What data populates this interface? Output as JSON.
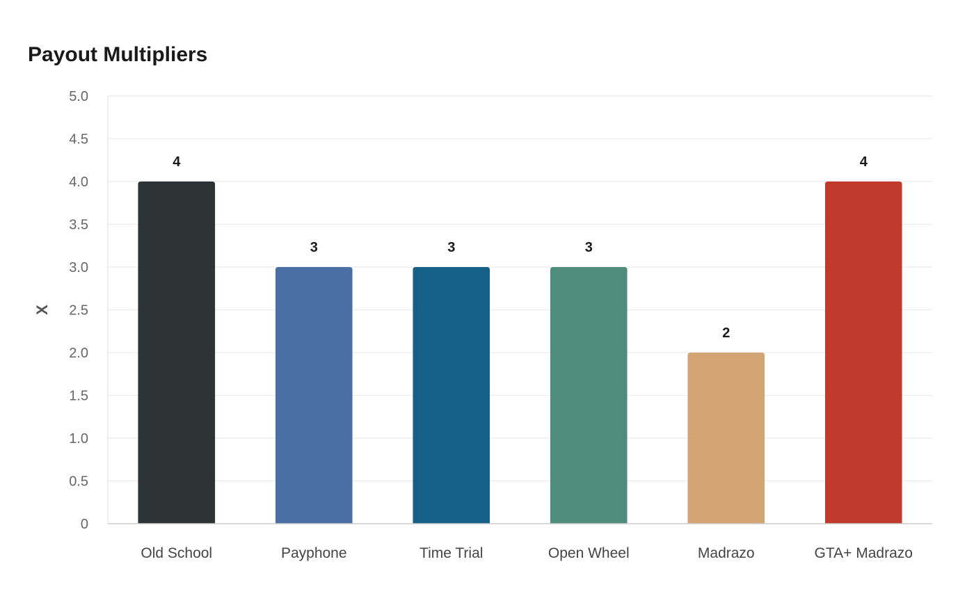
{
  "chart_data": {
    "type": "bar",
    "title": "Payout Multipliers",
    "ylabel": "X",
    "xlabel": "",
    "ylim": [
      0,
      5
    ],
    "yticks": [
      0,
      0.5,
      1,
      1.5,
      2,
      2.5,
      3,
      3.5,
      4,
      4.5,
      5
    ],
    "ytick_labels": [
      "0",
      "0.5",
      "1.0",
      "1.5",
      "2.0",
      "2.5",
      "3.0",
      "3.5",
      "4.0",
      "4.5",
      "5.0"
    ],
    "grid": true,
    "categories": [
      "Old School",
      "Payphone",
      "Time Trial",
      "Open Wheel",
      "Madrazo",
      "GTA+ Madrazo"
    ],
    "values": [
      4,
      3,
      3,
      3,
      2,
      4
    ],
    "data_labels": [
      "4",
      "3",
      "3",
      "3",
      "2",
      "4"
    ],
    "colors": [
      "#2d3436",
      "#4a6fa5",
      "#166088",
      "#4e8d7c",
      "#d4a574",
      "#c0392b"
    ]
  }
}
